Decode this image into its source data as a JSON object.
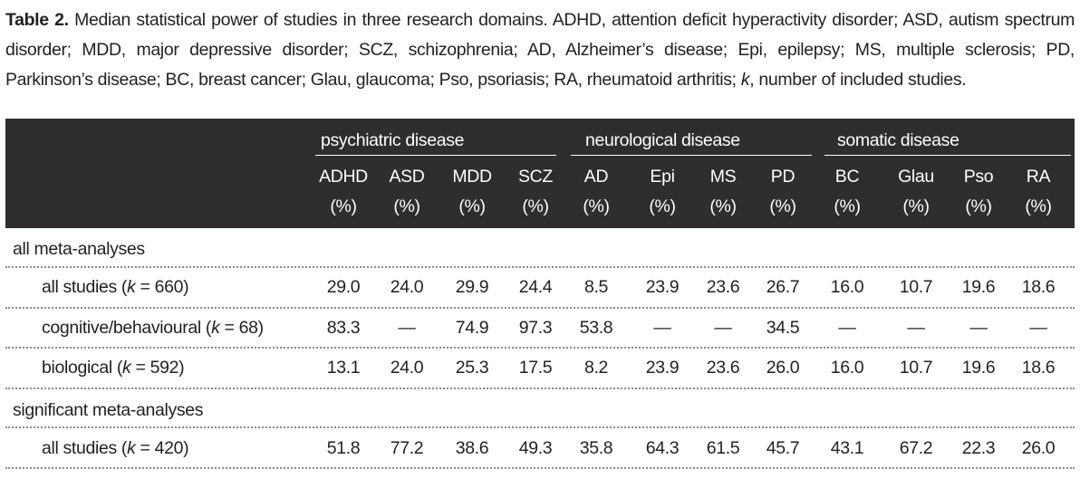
{
  "caption": {
    "label": "Table 2.",
    "text_a": " Median statistical power of studies in three research domains. ADHD, attention deficit hyperactivity disorder; ASD, autism spectrum disorder; MDD, major depressive disorder; SCZ, schizophrenia; AD, Alzheimer’s disease; Epi, epilepsy; MS, multiple sclerosis; PD, Parkinson’s disease; BC, breast cancer; Glau, glaucoma; Pso, psoriasis; RA, rheumatoid arthritis; ",
    "k": "k",
    "text_b": ", number of included studies."
  },
  "groups": [
    "psychiatric disease",
    "neurological disease",
    "somatic disease"
  ],
  "columns": [
    {
      "name": "ADHD",
      "unit": "(%)"
    },
    {
      "name": "ASD",
      "unit": "(%)"
    },
    {
      "name": "MDD",
      "unit": "(%)"
    },
    {
      "name": "SCZ",
      "unit": "(%)"
    },
    {
      "name": "AD",
      "unit": "(%)"
    },
    {
      "name": "Epi",
      "unit": "(%)"
    },
    {
      "name": "MS",
      "unit": "(%)"
    },
    {
      "name": "PD",
      "unit": "(%)"
    },
    {
      "name": "BC",
      "unit": "(%)"
    },
    {
      "name": "Glau",
      "unit": "(%)"
    },
    {
      "name": "Pso",
      "unit": "(%)"
    },
    {
      "name": "RA",
      "unit": "(%)"
    }
  ],
  "rows": [
    {
      "type": "section",
      "label": "all meta-analyses"
    },
    {
      "type": "data",
      "pre": "all studies (",
      "k": "k",
      "post": " = 660)",
      "values": [
        "29.0",
        "24.0",
        "29.9",
        "24.4",
        "8.5",
        "23.9",
        "23.6",
        "26.7",
        "16.0",
        "10.7",
        "19.6",
        "18.6"
      ]
    },
    {
      "type": "data",
      "pre": "cognitive/behavioural (",
      "k": "k",
      "post": " = 68)",
      "values": [
        "83.3",
        "—",
        "74.9",
        "97.3",
        "53.8",
        "—",
        "—",
        "34.5",
        "—",
        "—",
        "—",
        "—"
      ]
    },
    {
      "type": "data",
      "pre": "biological (",
      "k": "k",
      "post": " = 592)",
      "values": [
        "13.1",
        "24.0",
        "25.3",
        "17.5",
        "8.2",
        "23.9",
        "23.6",
        "26.0",
        "16.0",
        "10.7",
        "19.6",
        "18.6"
      ]
    },
    {
      "type": "section",
      "label": "significant meta-analyses"
    },
    {
      "type": "data",
      "pre": "all studies (",
      "k": "k",
      "post": " = 420)",
      "values": [
        "51.8",
        "77.2",
        "38.6",
        "49.3",
        "35.8",
        "64.3",
        "61.5",
        "45.7",
        "43.1",
        "67.2",
        "22.3",
        "26.0"
      ]
    }
  ]
}
